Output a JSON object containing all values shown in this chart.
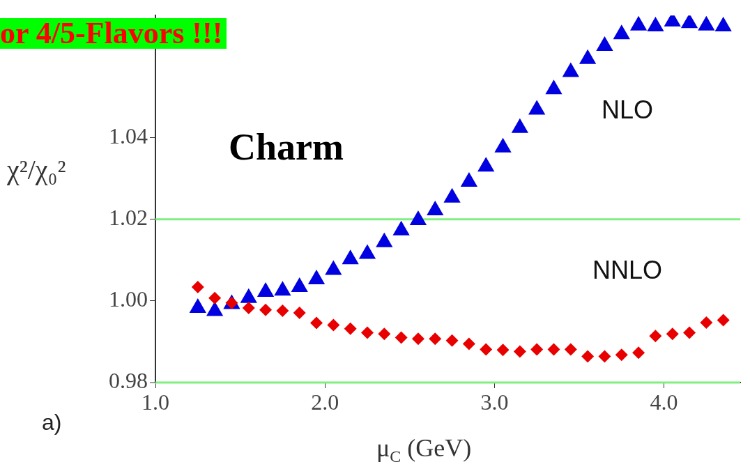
{
  "chart_data": {
    "type": "scatter",
    "xlabel": "μ$_{C}$ (GeV)",
    "ylabel": "χ²/χ₀²",
    "annotations": [
      "or 4/5-Flavors !!!",
      "Charm",
      "a)"
    ],
    "x": [
      1.25,
      1.35,
      1.45,
      1.55,
      1.65,
      1.75,
      1.85,
      1.95,
      2.05,
      2.15,
      2.25,
      2.35,
      2.45,
      2.55,
      2.65,
      2.75,
      2.85,
      2.95,
      3.05,
      3.15,
      3.25,
      3.35,
      3.45,
      3.55,
      3.65,
      3.75,
      3.85,
      3.95,
      4.05,
      4.15,
      4.25,
      4.35
    ],
    "series": [
      {
        "name": "NLO",
        "color": "#0000e0",
        "marker": "triangle",
        "values": [
          0.9983,
          0.9975,
          0.9992,
          1.0007,
          1.0022,
          1.0025,
          1.0034,
          1.0053,
          1.0076,
          1.0102,
          1.0115,
          1.0144,
          1.0173,
          1.0198,
          1.0222,
          1.0253,
          1.0292,
          1.0329,
          1.0376,
          1.0424,
          1.0469,
          1.0519,
          1.0561,
          1.0593,
          1.0625,
          1.0654,
          1.0675,
          1.0673,
          1.0685,
          1.0681,
          1.0675,
          1.0673
        ]
      },
      {
        "name": "NNLO",
        "color": "#e80000",
        "marker": "diamond",
        "values": [
          1.0034,
          1.0007,
          0.9995,
          0.9983,
          0.9978,
          0.9976,
          0.9971,
          0.9946,
          0.9941,
          0.9932,
          0.9922,
          0.9919,
          0.991,
          0.9907,
          0.9907,
          0.9903,
          0.9895,
          0.9881,
          0.988,
          0.9876,
          0.9881,
          0.9881,
          0.9881,
          0.9864,
          0.9864,
          0.9868,
          0.9873,
          0.9914,
          0.9919,
          0.9922,
          0.9947,
          0.9953
        ]
      }
    ],
    "xlim": [
      1.0,
      4.45
    ],
    "ylim": [
      0.98,
      1.07
    ],
    "xticks": [
      {
        "value": 1.0,
        "label": "1.0"
      },
      {
        "value": 2.0,
        "label": "2.0"
      },
      {
        "value": 3.0,
        "label": "3.0"
      },
      {
        "value": 4.0,
        "label": "4.0"
      }
    ],
    "yticks": [
      {
        "value": 0.98,
        "label": "0.98"
      },
      {
        "value": 1.0,
        "label": "1.00"
      },
      {
        "value": 1.02,
        "label": "1.02"
      },
      {
        "value": 1.04,
        "label": "1.04"
      }
    ],
    "ref_lines": [
      {
        "axis": "y",
        "value": 1.02,
        "color": "#80ee80"
      },
      {
        "axis": "y",
        "value": 0.98,
        "color": "#80ee80"
      }
    ],
    "grid": false,
    "legend": false
  }
}
